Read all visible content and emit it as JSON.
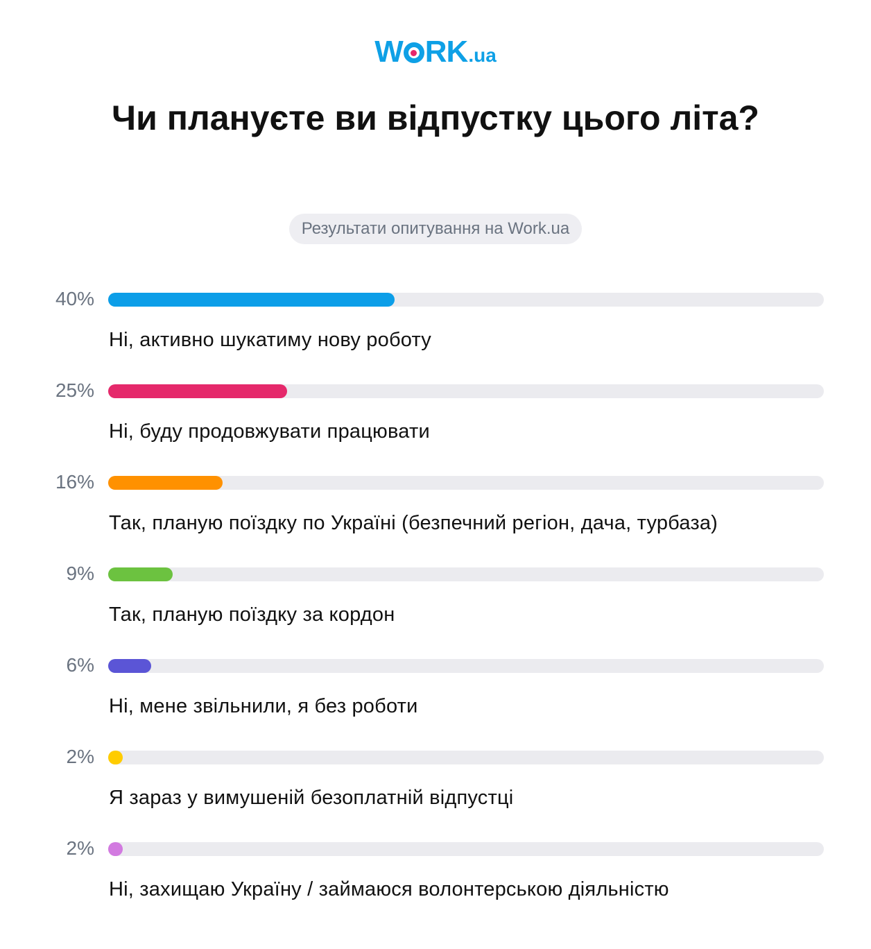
{
  "brand": {
    "logo_text_main": "WORK",
    "logo_text_tld": ".ua",
    "accent_color": "#0ea0e6",
    "dot_color": "#e6276b"
  },
  "title": "Чи плануєте ви відпустку цього літа?",
  "subtitle": "Результати опитування на Work.ua",
  "chart_data": {
    "type": "bar",
    "orientation": "horizontal",
    "xlim": [
      0,
      100
    ],
    "grid": false,
    "categories": [
      "Ні, активно шукатиму нову роботу",
      "Ні, буду продовжувати працювати",
      "Так, планую поїздку по Україні (безпечний регіон, дача, турбаза)",
      "Так, планую поїздку за кордон",
      "Ні, мене звільнили, я без роботи",
      "Я зараз у вимушеній безоплатній відпустці",
      "Ні, захищаю Україну / займаюся волонтерською діяльністю"
    ],
    "values": [
      40,
      25,
      16,
      9,
      6,
      2,
      2
    ],
    "value_labels": [
      "40%",
      "25%",
      "16%",
      "9%",
      "6%",
      "2%",
      "2%"
    ],
    "colors": [
      "#0c9ee8",
      "#e5296b",
      "#ff9100",
      "#6cc240",
      "#5b55d6",
      "#ffcc00",
      "#d27ae0"
    ],
    "track_color": "#ebebef"
  }
}
